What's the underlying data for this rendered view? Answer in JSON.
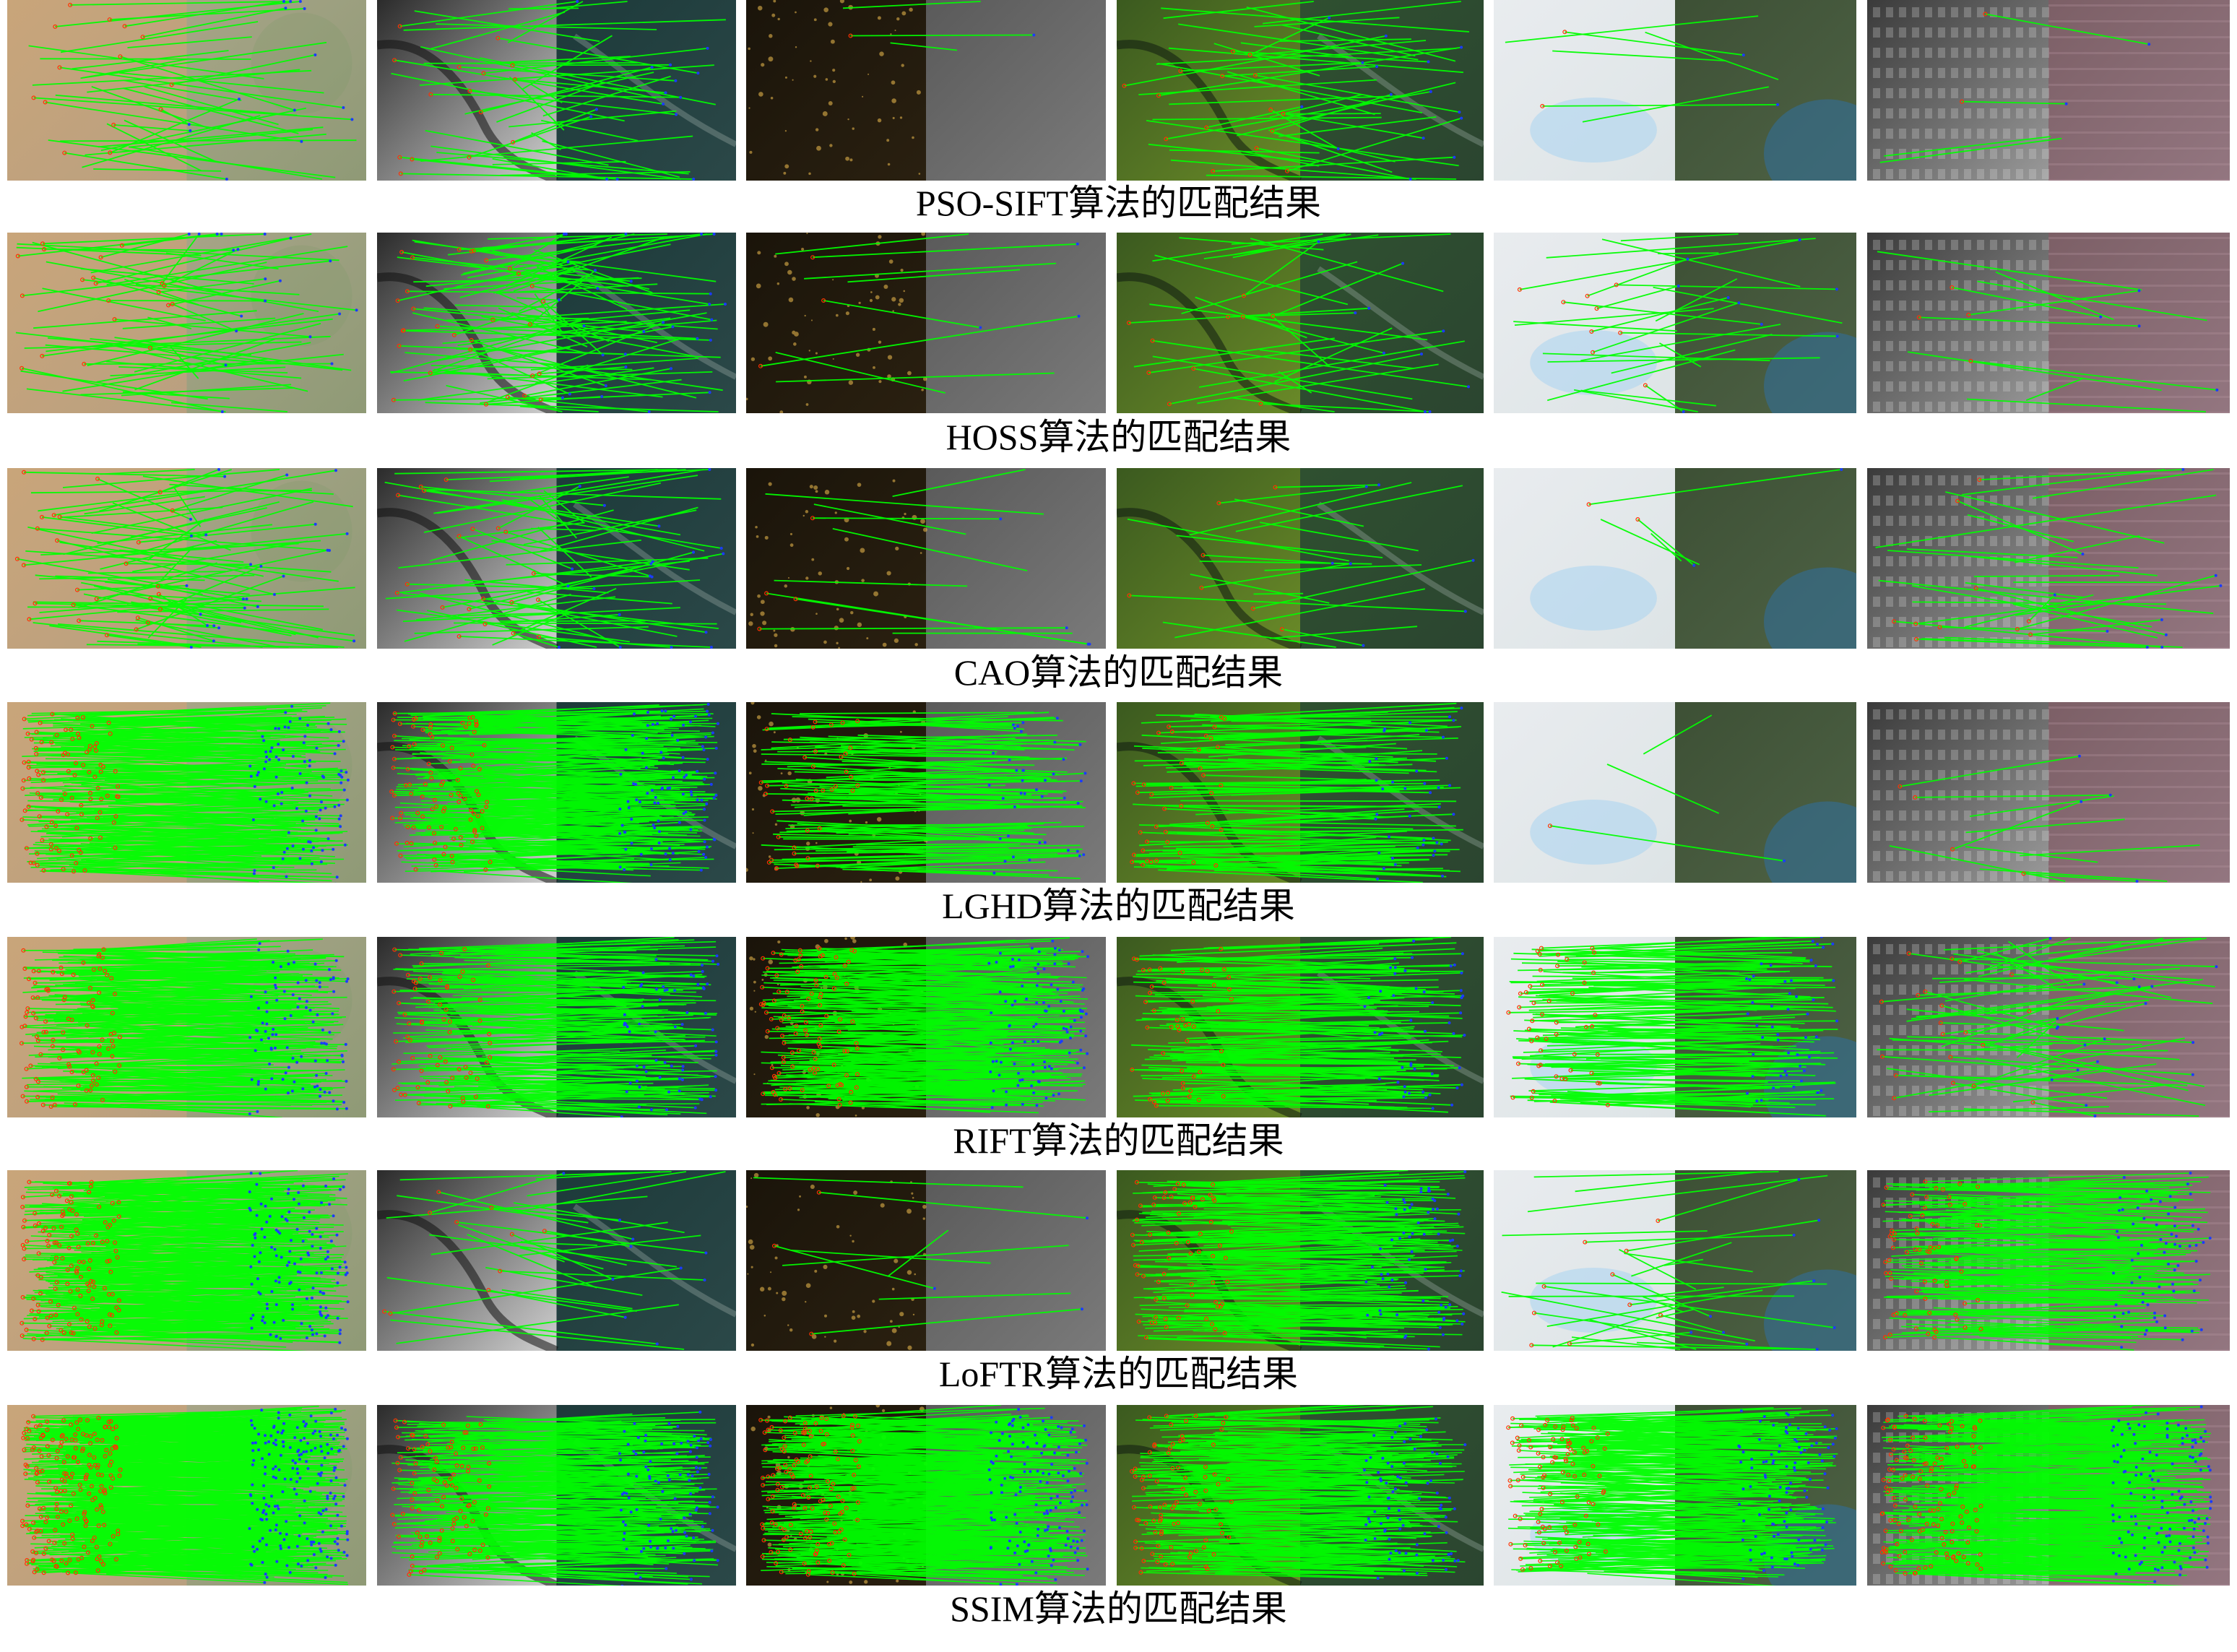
{
  "figure": {
    "rows": [
      {
        "id": "pso-sift",
        "caption": "PSO-SIFT算法的匹配结果",
        "density": [
          40,
          45,
          3,
          45,
          6,
          4
        ]
      },
      {
        "id": "hoss",
        "caption": "HOSS算法的匹配结果",
        "density": [
          60,
          90,
          8,
          30,
          25,
          10
        ]
      },
      {
        "id": "cao",
        "caption": "CAO算法的匹配结果",
        "density": [
          80,
          60,
          10,
          20,
          4,
          30
        ]
      },
      {
        "id": "lghd",
        "caption": "LGHD算法的匹配结果",
        "density": [
          300,
          300,
          120,
          120,
          3,
          10
        ]
      },
      {
        "id": "rift",
        "caption": "RIFT算法的匹配结果",
        "density": [
          300,
          200,
          300,
          150,
          150,
          60
        ]
      },
      {
        "id": "loftr",
        "caption": "LoFTR算法的匹配结果",
        "density": [
          400,
          30,
          8,
          200,
          30,
          200
        ]
      },
      {
        "id": "ssim",
        "caption": "SSIM算法的匹配结果",
        "density": [
          600,
          300,
          400,
          250,
          300,
          400
        ]
      }
    ],
    "scene_types": [
      "desert",
      "river-sar",
      "night-lights",
      "river-optical",
      "map-vs-satellite",
      "depth-vs-urban"
    ],
    "colors": {
      "match_line": "#00ff00",
      "left_point": "#ff3300",
      "right_point": "#1a3cff",
      "caption_text": "#000000"
    }
  }
}
